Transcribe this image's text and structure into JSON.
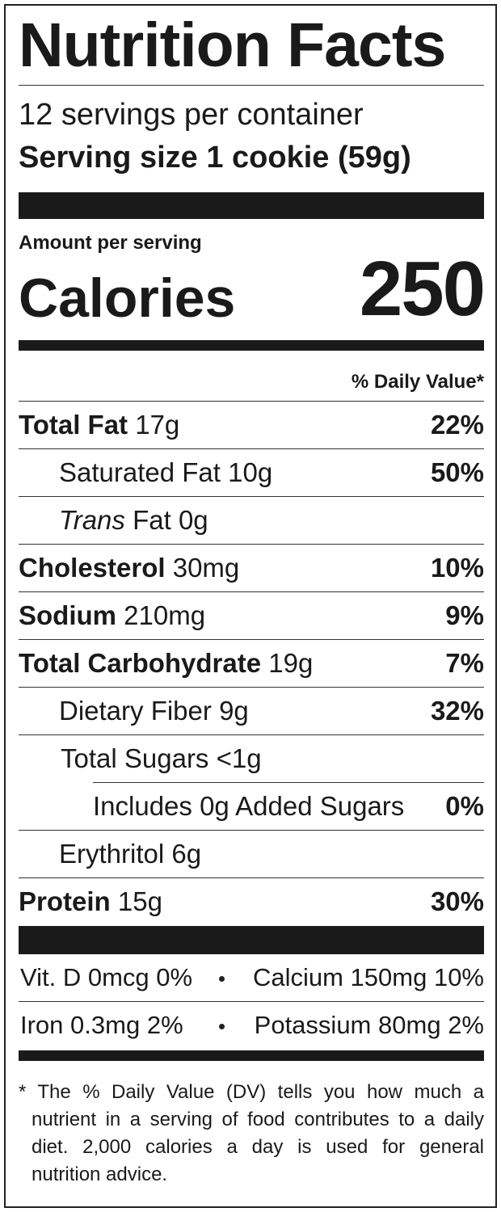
{
  "title": "Nutrition Facts",
  "servings": "12 servings per container",
  "serving_size": "Serving size 1 cookie (59g)",
  "amount_per_serving": "Amount per serving",
  "calories": {
    "label": "Calories",
    "value": "250"
  },
  "daily_value_header": "% Daily Value*",
  "nutrients": [
    {
      "name": "Total Fat",
      "amount": "17g",
      "dv": "22%"
    },
    {
      "name": "Saturated Fat",
      "amount": "10g",
      "dv": "50%"
    },
    {
      "name_italic": "Trans",
      "name": "Fat",
      "amount": "0g"
    },
    {
      "name": "Cholesterol",
      "amount": "30mg",
      "dv": "10%"
    },
    {
      "name": "Sodium",
      "amount": "210mg",
      "dv": "9%"
    },
    {
      "name": "Total Carbohydrate",
      "amount": "19g",
      "dv": "7%"
    },
    {
      "name": "Dietary Fiber",
      "amount": "9g",
      "dv": "32%"
    },
    {
      "name": "Total Sugars",
      "amount": "<1g"
    },
    {
      "name": "Includes 0g Added Sugars",
      "dv": "0%"
    },
    {
      "name": "Erythritol",
      "amount": "6g"
    },
    {
      "name": "Protein",
      "amount": "15g",
      "dv": "30%"
    }
  ],
  "vitamins": [
    {
      "name": "Vit. D",
      "amount": "0mcg",
      "dv": "0%"
    },
    {
      "name": "Calcium",
      "amount": "150mg",
      "dv": "10%"
    },
    {
      "name": "Iron",
      "amount": "0.3mg",
      "dv": "2%"
    },
    {
      "name": "Potassium",
      "amount": "80mg",
      "dv": "2%"
    }
  ],
  "footnote": "* The % Daily Value (DV) tells you how much a nutrient in a serving of food contributes to a daily diet. 2,000 calories a day is used for general nutrition advice."
}
